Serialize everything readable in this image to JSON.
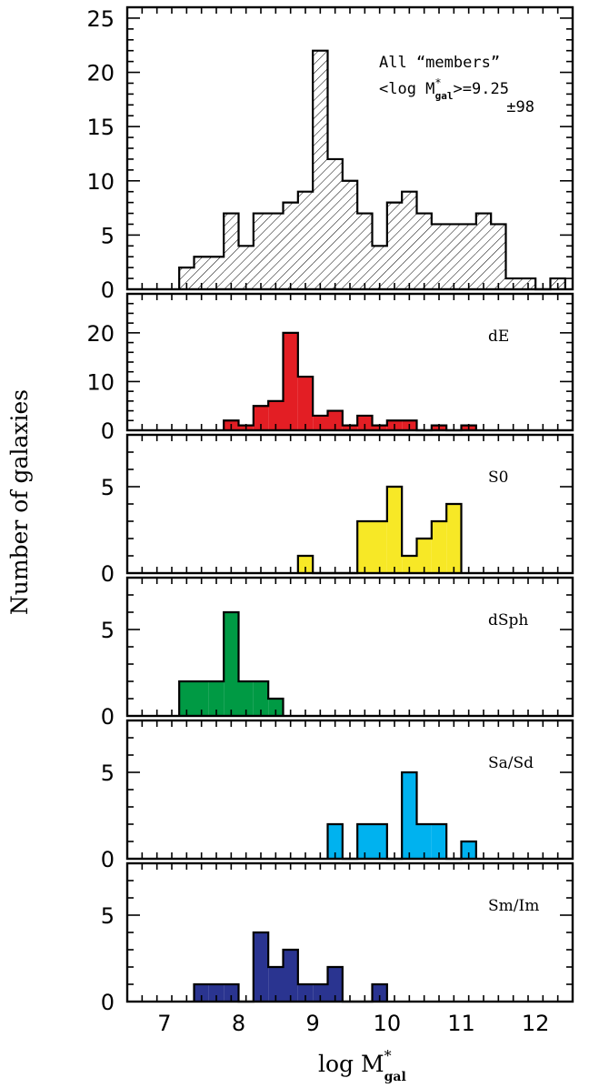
{
  "figure": {
    "ylabel": "Number of galaxies",
    "xlabel_main": "log M",
    "xlabel_sup": "*",
    "xlabel_sub": "gal"
  },
  "chart_data": [
    {
      "type": "bar",
      "label": "",
      "annotation_line1": "All “members”",
      "annotation_line2_pre": "<log M",
      "annotation_line2_sup": "*",
      "annotation_line2_sub": "gal",
      "annotation_line2_post": ">=9.25",
      "annotation_line3": "±98",
      "color": "hatched",
      "bin_width": 0.2,
      "x_edges_start": 7.2,
      "counts": [
        2,
        3,
        3,
        7,
        4,
        7,
        7,
        8,
        9,
        22,
        12,
        10,
        7,
        4,
        8,
        9,
        7,
        6,
        6,
        6,
        7,
        6,
        1,
        1,
        0,
        1
      ],
      "ylim": [
        0,
        26
      ],
      "yticks": [
        0,
        5,
        10,
        15,
        20,
        25
      ],
      "xlim": [
        6.5,
        12.5
      ]
    },
    {
      "type": "bar",
      "label": "dE",
      "color": "#e31e24",
      "bin_width": 0.2,
      "x_edges_start": 7.8,
      "counts": [
        2,
        1,
        5,
        6,
        20,
        11,
        3,
        4,
        1,
        3,
        1,
        2,
        2,
        0,
        1,
        0,
        1
      ],
      "ylim": [
        0,
        28
      ],
      "yticks": [
        0,
        10,
        20
      ],
      "xlim": [
        6.5,
        12.5
      ]
    },
    {
      "type": "bar",
      "label": "S0",
      "color": "#f7e826",
      "bin_width": 0.2,
      "x_edges_start": 8.8,
      "counts": [
        1,
        0,
        0,
        0,
        3,
        3,
        5,
        1,
        2,
        3,
        4
      ],
      "ylim": [
        0,
        8
      ],
      "yticks": [
        0,
        5
      ],
      "xlim": [
        6.5,
        12.5
      ]
    },
    {
      "type": "bar",
      "label": "dSph",
      "color": "#009a44",
      "bin_width": 0.2,
      "x_edges_start": 7.2,
      "counts": [
        2,
        2,
        2,
        6,
        2,
        2,
        1
      ],
      "ylim": [
        0,
        8
      ],
      "yticks": [
        0,
        5
      ],
      "xlim": [
        6.5,
        12.5
      ]
    },
    {
      "type": "bar",
      "label": "Sa/Sd",
      "color": "#00b2ef",
      "bin_width": 0.2,
      "x_edges_start": 9.2,
      "counts": [
        2,
        0,
        2,
        2,
        0,
        5,
        2,
        2,
        0,
        1
      ],
      "ylim": [
        0,
        8
      ],
      "yticks": [
        0,
        5
      ],
      "xlim": [
        6.5,
        12.5
      ]
    },
    {
      "type": "bar",
      "label": "Sm/Im",
      "color": "#2a3490",
      "bin_width": 0.2,
      "x_edges_start": 7.4,
      "counts": [
        1,
        1,
        1,
        0,
        4,
        2,
        3,
        1,
        1,
        2,
        0,
        0,
        1
      ],
      "ylim": [
        0,
        8
      ],
      "yticks": [
        0,
        5
      ],
      "xlim": [
        6.5,
        12.5
      ]
    }
  ],
  "xticks": [
    7,
    8,
    9,
    10,
    11,
    12
  ]
}
